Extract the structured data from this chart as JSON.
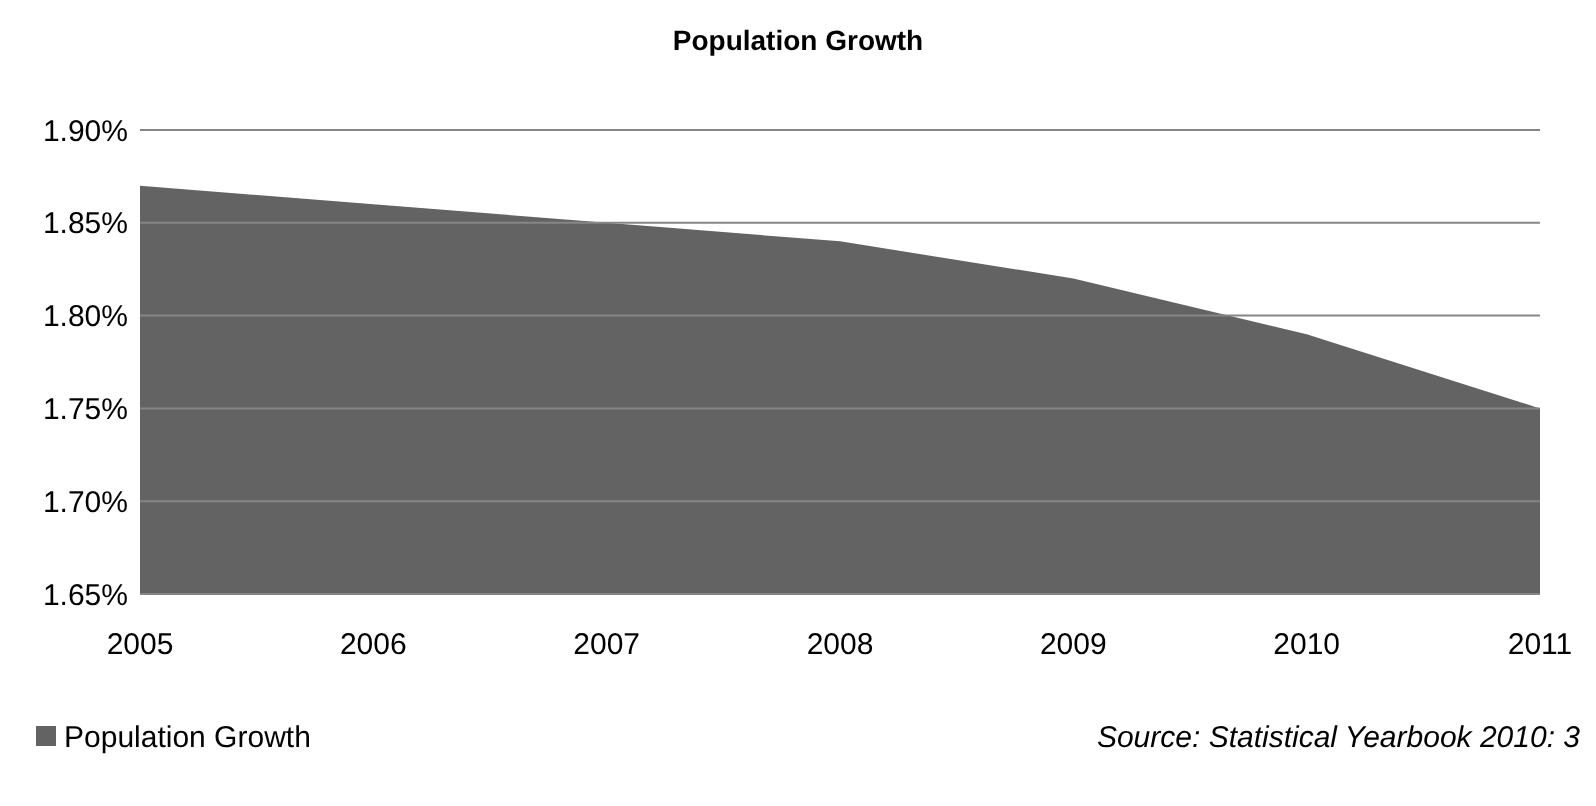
{
  "chart_data": {
    "type": "area",
    "title": "Population Growth",
    "x": [
      2005,
      2006,
      2007,
      2008,
      2009,
      2010,
      2011
    ],
    "series": [
      {
        "name": "Population Growth",
        "color": "#636363",
        "values": [
          1.87,
          1.86,
          1.85,
          1.84,
          1.82,
          1.79,
          1.75
        ]
      }
    ],
    "xlim": [
      2005,
      2011
    ],
    "xticks": [
      2005,
      2006,
      2007,
      2008,
      2009,
      2010,
      2011
    ],
    "ylim": [
      1.65,
      1.9
    ],
    "yticks": [
      {
        "value": 1.65,
        "label": "1.65%"
      },
      {
        "value": 1.7,
        "label": "1.70%"
      },
      {
        "value": 1.75,
        "label": "1.75%"
      },
      {
        "value": 1.8,
        "label": "1.80%"
      },
      {
        "value": 1.85,
        "label": "1.85%"
      },
      {
        "value": 1.9,
        "label": "1.90%"
      }
    ],
    "grid": "y",
    "legend": "bottom left",
    "annotations": [
      "Source: Statistical Yearbook 2010: 3"
    ]
  }
}
